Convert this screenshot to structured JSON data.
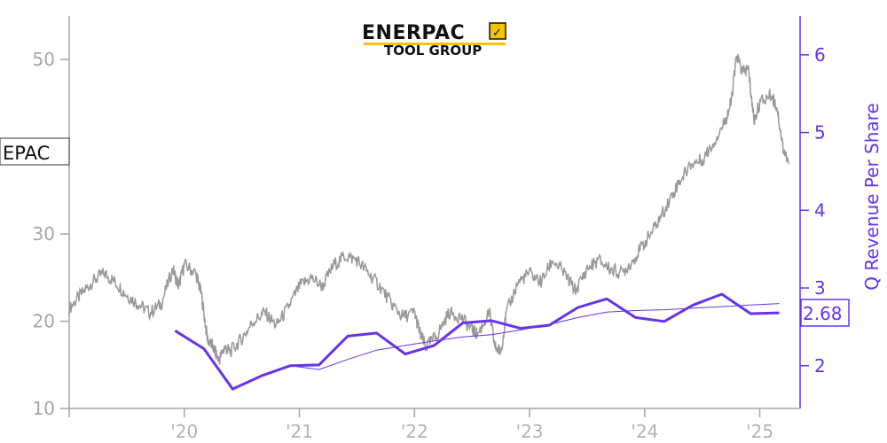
{
  "logo": {
    "name": "ENERPAC",
    "subtitle": "TOOL GROUP",
    "accent_color": "#f5c400"
  },
  "chart_data": {
    "type": "line",
    "ticker": "EPAC",
    "x_ticks": [
      "'20",
      "'21",
      "'22",
      "'23",
      "'24",
      "'25"
    ],
    "left_axis": {
      "ticks": [
        10,
        20,
        30,
        50
      ],
      "ylim": [
        10,
        55
      ],
      "color": "#a6a6a6"
    },
    "right_axis": {
      "label": "Q Revenue Per Share",
      "ticks": [
        2,
        3,
        4,
        5,
        6
      ],
      "ylim": [
        1.45,
        6.5
      ],
      "color": "#6633ee"
    },
    "xlim": [
      2019.0,
      2025.35
    ],
    "price_series": {
      "color": "#999999",
      "points": [
        [
          2019.0,
          21.5
        ],
        [
          2019.1,
          23.0
        ],
        [
          2019.2,
          24.5
        ],
        [
          2019.3,
          25.5
        ],
        [
          2019.4,
          24.5
        ],
        [
          2019.5,
          23.0
        ],
        [
          2019.6,
          22.0
        ],
        [
          2019.7,
          21.0
        ],
        [
          2019.8,
          22.0
        ],
        [
          2019.9,
          26.0
        ],
        [
          2019.95,
          24.0
        ],
        [
          2020.0,
          26.5
        ],
        [
          2020.1,
          25.5
        ],
        [
          2020.15,
          23.0
        ],
        [
          2020.2,
          18.0
        ],
        [
          2020.25,
          17.0
        ],
        [
          2020.3,
          15.5
        ],
        [
          2020.35,
          17.0
        ],
        [
          2020.4,
          16.5
        ],
        [
          2020.5,
          18.0
        ],
        [
          2020.6,
          20.0
        ],
        [
          2020.7,
          21.0
        ],
        [
          2020.8,
          19.5
        ],
        [
          2020.9,
          21.5
        ],
        [
          2021.0,
          24.0
        ],
        [
          2021.1,
          25.0
        ],
        [
          2021.2,
          24.0
        ],
        [
          2021.3,
          26.5
        ],
        [
          2021.4,
          27.5
        ],
        [
          2021.5,
          27.0
        ],
        [
          2021.6,
          25.5
        ],
        [
          2021.7,
          24.0
        ],
        [
          2021.8,
          22.0
        ],
        [
          2021.9,
          20.5
        ],
        [
          2022.0,
          21.0
        ],
        [
          2022.05,
          18.5
        ],
        [
          2022.1,
          17.0
        ],
        [
          2022.2,
          18.5
        ],
        [
          2022.3,
          21.0
        ],
        [
          2022.4,
          20.5
        ],
        [
          2022.5,
          19.0
        ],
        [
          2022.55,
          18.5
        ],
        [
          2022.65,
          21.0
        ],
        [
          2022.7,
          17.0
        ],
        [
          2022.75,
          16.5
        ],
        [
          2022.8,
          21.0
        ],
        [
          2022.9,
          24.5
        ],
        [
          2023.0,
          25.5
        ],
        [
          2023.1,
          24.5
        ],
        [
          2023.2,
          27.0
        ],
        [
          2023.3,
          25.5
        ],
        [
          2023.4,
          23.5
        ],
        [
          2023.5,
          26.0
        ],
        [
          2023.6,
          27.0
        ],
        [
          2023.7,
          26.0
        ],
        [
          2023.8,
          25.5
        ],
        [
          2023.9,
          27.0
        ],
        [
          2024.0,
          29.0
        ],
        [
          2024.1,
          31.0
        ],
        [
          2024.2,
          33.5
        ],
        [
          2024.3,
          36.0
        ],
        [
          2024.4,
          38.0
        ],
        [
          2024.5,
          38.5
        ],
        [
          2024.6,
          40.5
        ],
        [
          2024.7,
          43.0
        ],
        [
          2024.75,
          45.0
        ],
        [
          2024.8,
          50.5
        ],
        [
          2024.85,
          48.5
        ],
        [
          2024.9,
          49.0
        ],
        [
          2024.95,
          43.0
        ],
        [
          2025.0,
          45.0
        ],
        [
          2025.1,
          46.0
        ],
        [
          2025.15,
          44.5
        ],
        [
          2025.2,
          40.0
        ],
        [
          2025.25,
          38.0
        ]
      ]
    },
    "revenue_series": {
      "name": "Q Revenue Per Share",
      "color": "#6633ee",
      "last_value": "2.68",
      "points": [
        [
          2019.92,
          2.45
        ],
        [
          2020.17,
          2.22
        ],
        [
          2020.42,
          1.7
        ],
        [
          2020.67,
          1.87
        ],
        [
          2020.92,
          2.0
        ],
        [
          2021.17,
          2.01
        ],
        [
          2021.42,
          2.38
        ],
        [
          2021.67,
          2.42
        ],
        [
          2021.92,
          2.15
        ],
        [
          2022.17,
          2.26
        ],
        [
          2022.42,
          2.55
        ],
        [
          2022.67,
          2.58
        ],
        [
          2022.92,
          2.48
        ],
        [
          2023.17,
          2.52
        ],
        [
          2023.42,
          2.75
        ],
        [
          2023.67,
          2.86
        ],
        [
          2023.92,
          2.62
        ],
        [
          2024.17,
          2.57
        ],
        [
          2024.42,
          2.78
        ],
        [
          2024.67,
          2.92
        ],
        [
          2024.92,
          2.67
        ],
        [
          2025.17,
          2.68
        ]
      ]
    },
    "trend_series": {
      "color": "#6633ee",
      "points": [
        [
          2020.92,
          2.0
        ],
        [
          2021.17,
          1.95
        ],
        [
          2021.42,
          2.08
        ],
        [
          2021.67,
          2.2
        ],
        [
          2021.92,
          2.26
        ],
        [
          2022.17,
          2.32
        ],
        [
          2022.42,
          2.37
        ],
        [
          2022.67,
          2.4
        ],
        [
          2022.92,
          2.46
        ],
        [
          2023.17,
          2.53
        ],
        [
          2023.42,
          2.62
        ],
        [
          2023.67,
          2.69
        ],
        [
          2023.92,
          2.71
        ],
        [
          2024.17,
          2.72
        ],
        [
          2024.42,
          2.74
        ],
        [
          2024.67,
          2.76
        ],
        [
          2024.92,
          2.78
        ],
        [
          2025.17,
          2.8
        ]
      ]
    }
  }
}
